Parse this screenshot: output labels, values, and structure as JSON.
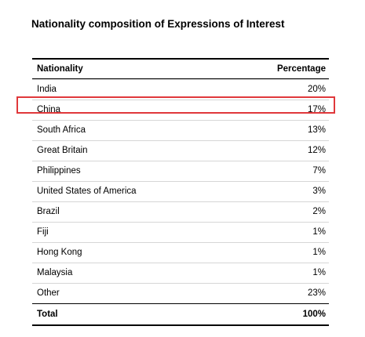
{
  "title": "Nationality composition of Expressions of Interest",
  "highlight_color": "#e0383b",
  "chart_data": {
    "type": "table",
    "title": "Nationality composition of Expressions of Interest",
    "columns": [
      "Nationality",
      "Percentage"
    ],
    "rows": [
      {
        "nationality": "India",
        "percentage": "20%",
        "value": 20
      },
      {
        "nationality": "China",
        "percentage": "17%",
        "value": 17,
        "highlighted": true
      },
      {
        "nationality": "South Africa",
        "percentage": "13%",
        "value": 13
      },
      {
        "nationality": "Great Britain",
        "percentage": "12%",
        "value": 12
      },
      {
        "nationality": "Philippines",
        "percentage": "7%",
        "value": 7
      },
      {
        "nationality": "United States of America",
        "percentage": "3%",
        "value": 3
      },
      {
        "nationality": "Brazil",
        "percentage": "2%",
        "value": 2
      },
      {
        "nationality": "Fiji",
        "percentage": "1%",
        "value": 1
      },
      {
        "nationality": "Hong Kong",
        "percentage": "1%",
        "value": 1
      },
      {
        "nationality": "Malaysia",
        "percentage": "1%",
        "value": 1
      },
      {
        "nationality": "Other",
        "percentage": "23%",
        "value": 23
      }
    ],
    "total": {
      "label": "Total",
      "percentage": "100%",
      "value": 100
    }
  }
}
